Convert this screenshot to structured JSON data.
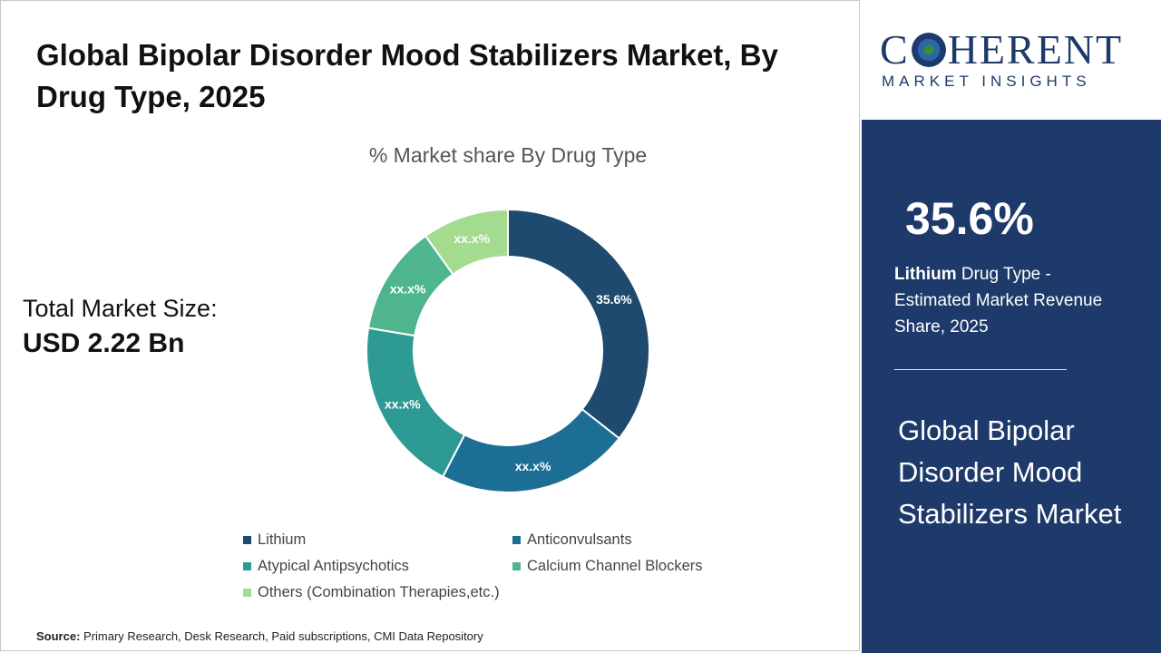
{
  "title": "Global Bipolar Disorder Mood Stabilizers Market, By Drug Type, 2025",
  "market_size": {
    "label": "Total Market Size:",
    "value": "USD 2.22 Bn"
  },
  "source": {
    "label": "Source:",
    "text": "Primary Research, Desk Research, Paid subscriptions, CMI Data Repository"
  },
  "logo": {
    "main_left": "C",
    "main_right": "HERENT",
    "sub": "MARKET INSIGHTS"
  },
  "panel": {
    "kpi_value": "35.6%",
    "kpi_bold": "Lithium",
    "kpi_text": " Drug Type - Estimated Market Revenue Share, 2025",
    "title": "Global Bipolar Disorder Mood Stabilizers Market"
  },
  "colors": {
    "navy": "#1e3a6a",
    "lithium": "#1d4a6e",
    "anticonvulsants": "#1d6e94",
    "atypical": "#2e9a94",
    "calcium": "#4fb58e",
    "others": "#a3db8f"
  },
  "chart_data": {
    "type": "pie",
    "variant": "donut",
    "title": "% Market share By Drug Type",
    "categories": [
      "Lithium",
      "Anticonvulsants",
      "Atypical Antipsychotics",
      "Calcium Channel Blockers",
      "Others (Combination Therapies,etc.)"
    ],
    "values": [
      35.6,
      22.0,
      20.0,
      12.5,
      9.9
    ],
    "data_labels": [
      "35.6%",
      "xx.x%",
      "xx.x%",
      "xx.x%",
      "xx.x%"
    ],
    "colors": [
      "#1d4a6e",
      "#1d6e94",
      "#2e9a94",
      "#4fb58e",
      "#a3db8f"
    ],
    "legend_position": "bottom"
  }
}
